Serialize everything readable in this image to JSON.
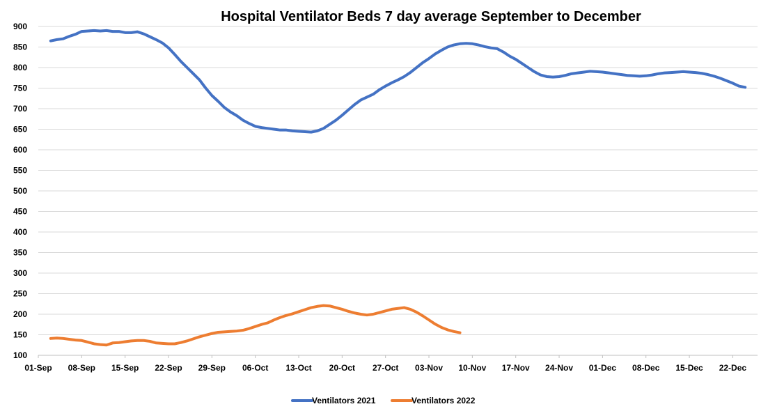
{
  "chart_data": {
    "type": "line",
    "title": "Hospital Ventilator Beds 7 day average September to December",
    "xlabel": "",
    "ylabel": "",
    "ylim": [
      100,
      900
    ],
    "yticks": [
      100,
      150,
      200,
      250,
      300,
      350,
      400,
      450,
      500,
      550,
      600,
      650,
      700,
      750,
      800,
      850,
      900
    ],
    "x_range_days": [
      0,
      116
    ],
    "x_ticks": [
      {
        "day": 0,
        "label": "01-Sep"
      },
      {
        "day": 7,
        "label": "08-Sep"
      },
      {
        "day": 14,
        "label": "15-Sep"
      },
      {
        "day": 21,
        "label": "22-Sep"
      },
      {
        "day": 28,
        "label": "29-Sep"
      },
      {
        "day": 35,
        "label": "06-Oct"
      },
      {
        "day": 42,
        "label": "13-Oct"
      },
      {
        "day": 49,
        "label": "20-Oct"
      },
      {
        "day": 56,
        "label": "27-Oct"
      },
      {
        "day": 63,
        "label": "03-Nov"
      },
      {
        "day": 70,
        "label": "10-Nov"
      },
      {
        "day": 77,
        "label": "17-Nov"
      },
      {
        "day": 84,
        "label": "24-Nov"
      },
      {
        "day": 91,
        "label": "01-Dec"
      },
      {
        "day": 98,
        "label": "08-Dec"
      },
      {
        "day": 105,
        "label": "15-Dec"
      },
      {
        "day": 112,
        "label": "22-Dec"
      }
    ],
    "legend_position": "bottom",
    "series": [
      {
        "name": "Ventilators 2021",
        "color": "#4472C4",
        "start_day": 2,
        "values": [
          865,
          868,
          870,
          876,
          881,
          888,
          889,
          890,
          889,
          890,
          888,
          888,
          885,
          885,
          887,
          882,
          875,
          868,
          860,
          848,
          832,
          815,
          800,
          785,
          770,
          750,
          732,
          718,
          703,
          692,
          683,
          672,
          664,
          657,
          654,
          652,
          650,
          648,
          648,
          646,
          645,
          644,
          643,
          646,
          652,
          662,
          672,
          684,
          697,
          710,
          721,
          728,
          735,
          746,
          755,
          763,
          770,
          778,
          788,
          800,
          812,
          822,
          833,
          842,
          850,
          855,
          858,
          859,
          858,
          855,
          851,
          848,
          846,
          838,
          828,
          820,
          810,
          800,
          790,
          782,
          778,
          777,
          778,
          781,
          785,
          787,
          789,
          791,
          790,
          789,
          787,
          785,
          783,
          781,
          780,
          779,
          780,
          782,
          785,
          787,
          788,
          789,
          790,
          789,
          788,
          786,
          783,
          779,
          774,
          768,
          762,
          755,
          752
        ]
      },
      {
        "name": "Ventilators 2022",
        "color": "#ED7D31",
        "start_day": 2,
        "values": [
          141,
          142,
          141,
          139,
          137,
          136,
          132,
          128,
          126,
          125,
          130,
          131,
          133,
          135,
          136,
          136,
          134,
          130,
          129,
          128,
          128,
          131,
          135,
          140,
          145,
          149,
          153,
          156,
          157,
          158,
          159,
          161,
          165,
          170,
          175,
          179,
          186,
          192,
          197,
          201,
          206,
          211,
          216,
          219,
          221,
          220,
          216,
          212,
          207,
          203,
          200,
          198,
          200,
          204,
          208,
          212,
          214,
          216,
          212,
          205,
          196,
          186,
          176,
          168,
          162,
          158,
          155
        ]
      }
    ]
  }
}
